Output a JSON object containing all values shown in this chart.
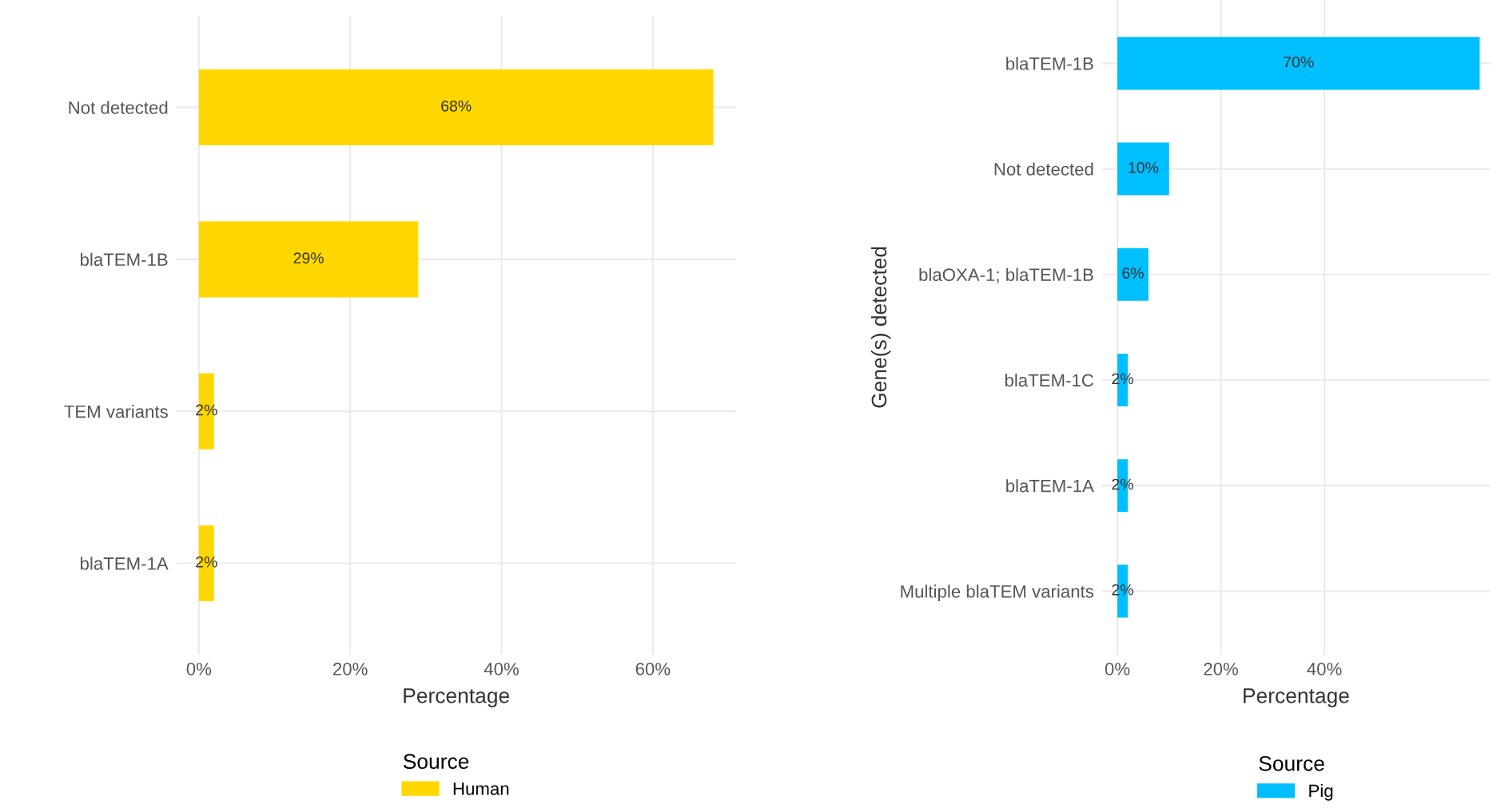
{
  "chart_data": [
    {
      "type": "bar",
      "orientation": "horizontal",
      "categories": [
        "Not detected",
        "blaTEM-1B",
        "TEM variants",
        "blaTEM-1A"
      ],
      "series": [
        {
          "name": "Human",
          "color": "#ffd700",
          "values": [
            68,
            29,
            2,
            2
          ],
          "value_labels": [
            "68%",
            "29%",
            "2%",
            "2%"
          ]
        }
      ],
      "xlim": [
        -3,
        71
      ],
      "xticks": [
        {
          "value": 0,
          "label": "0%"
        },
        {
          "value": 20,
          "label": "20%"
        },
        {
          "value": 40,
          "label": "40%"
        },
        {
          "value": 60,
          "label": "60%"
        }
      ],
      "xlabel": "Percentage",
      "legend_title": "Source",
      "legend": "bottom",
      "grid": true
    },
    {
      "type": "bar",
      "orientation": "horizontal",
      "categories": [
        "blaTEM-1B",
        "Not detected",
        "blaOXA-1; blaTEM-1B",
        "blaTEM-1C",
        "blaTEM-1A",
        "Multiple blaTEM variants"
      ],
      "series": [
        {
          "name": "Pig",
          "color": "#00bfff",
          "values": [
            70,
            10,
            6,
            2,
            2,
            2
          ],
          "value_labels": [
            "70%",
            "10%",
            "6%",
            "2%",
            "2%",
            "2%"
          ]
        }
      ],
      "xlim": [
        -3,
        72
      ],
      "xticks": [
        {
          "value": 0,
          "label": "0%"
        },
        {
          "value": 20,
          "label": "20%"
        },
        {
          "value": 40,
          "label": "40%"
        }
      ],
      "xlabel": "Percentage",
      "ylabel": "Gene(s) detected",
      "legend_title": "Source",
      "legend": "bottom",
      "grid": true
    }
  ]
}
